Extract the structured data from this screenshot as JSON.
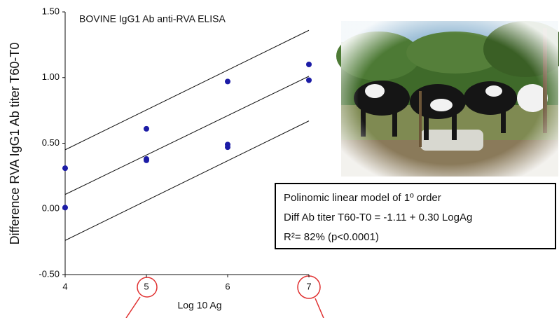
{
  "chart_data": {
    "type": "scatter",
    "title": "BOVINE IgG1 Ab anti-RVA   ELISA",
    "xlabel": "Log 10 Ag",
    "ylabel": "Difference RVA IgG1 Ab titer T60-T0",
    "xlim": [
      4,
      7
    ],
    "ylim": [
      -0.5,
      1.5
    ],
    "xticks": [
      4,
      5,
      6,
      7
    ],
    "yticks": [
      {
        "value": 1.5,
        "label": "1.50"
      },
      {
        "value": 1,
        "label": "1.00"
      },
      {
        "value": 0.5,
        "label": "0.50"
      },
      {
        "value": 0,
        "label": "0.00"
      },
      {
        "value": -0.5,
        "label": "-0.50"
      }
    ],
    "series": [
      {
        "type": "scatter",
        "color": "#1c1ca6",
        "x": [
          4,
          4,
          5,
          5,
          5,
          6,
          6,
          6,
          7,
          7
        ],
        "values": [
          0.31,
          0.01,
          0.61,
          0.38,
          0.37,
          0.97,
          0.49,
          0.47,
          1.1,
          0.98
        ]
      },
      {
        "type": "line",
        "color": "#111111",
        "x": [
          4,
          7
        ],
        "values": [
          0.45,
          1.36
        ]
      },
      {
        "type": "line",
        "color": "#111111",
        "x": [
          4,
          7
        ],
        "values": [
          0.11,
          1.01
        ]
      },
      {
        "type": "line",
        "color": "#111111",
        "x": [
          4,
          7
        ],
        "values": [
          -0.24,
          0.67
        ]
      }
    ],
    "annotations": [
      "Polinomic linear model of 1º order",
      "Diff Ab titer T60-T0 =  -1.11 + 0.30 LogAg",
      "R²= 82% (p<0.0001)"
    ]
  }
}
